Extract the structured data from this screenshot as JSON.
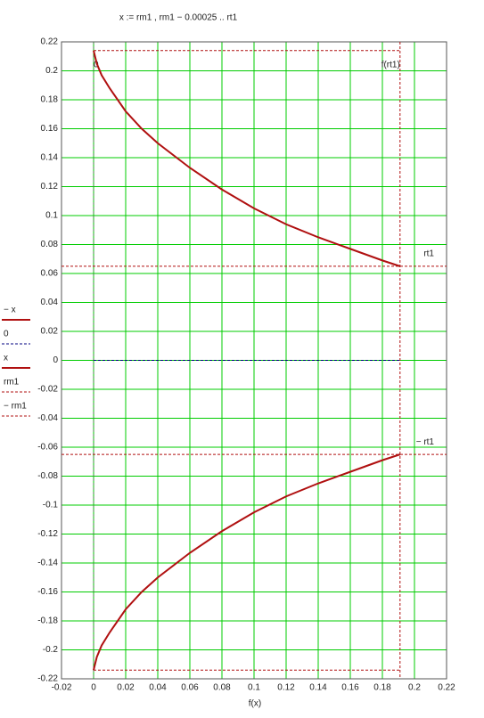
{
  "chart_data": {
    "type": "line",
    "title": "x := rm1 , rm1 − 0.00025 .. rt1",
    "x_label": "f(x)",
    "xlim": [
      -0.02,
      0.22
    ],
    "ylim": [
      -0.22,
      0.22
    ],
    "xticks": [
      -0.02,
      0,
      0.02,
      0.04,
      0.06,
      0.08,
      0.1,
      0.12,
      0.14,
      0.16,
      0.18,
      0.2,
      0.22
    ],
    "yticks": [
      0.22,
      0.2,
      0.18,
      0.16,
      0.14,
      0.12,
      0.1,
      0.08,
      0.06,
      0.04,
      0.02,
      0,
      -0.02,
      -0.04,
      -0.06,
      -0.08,
      -0.1,
      -0.12,
      -0.14,
      -0.16,
      -0.18,
      -0.2,
      -0.22
    ],
    "grid": true,
    "grid_color": "#00cc00",
    "series": [
      {
        "name": "− x",
        "color": "#b01010",
        "dash": false,
        "x": [
          0,
          0.002,
          0.005,
          0.01,
          0.02,
          0.03,
          0.04,
          0.06,
          0.08,
          0.1,
          0.12,
          0.14,
          0.16,
          0.18,
          0.191
        ],
        "values": [
          -0.214,
          -0.205,
          -0.197,
          -0.188,
          -0.172,
          -0.16,
          -0.15,
          -0.133,
          -0.118,
          -0.105,
          -0.094,
          -0.085,
          -0.077,
          -0.069,
          -0.065
        ]
      },
      {
        "name": "0",
        "color": "#000080",
        "dash": true,
        "x": [
          0,
          0.191
        ],
        "values": [
          0,
          0
        ]
      },
      {
        "name": "x",
        "color": "#b01010",
        "dash": false,
        "x": [
          0,
          0.002,
          0.005,
          0.01,
          0.02,
          0.03,
          0.04,
          0.06,
          0.08,
          0.1,
          0.12,
          0.14,
          0.16,
          0.18,
          0.191
        ],
        "values": [
          0.214,
          0.205,
          0.197,
          0.188,
          0.172,
          0.16,
          0.15,
          0.133,
          0.118,
          0.105,
          0.094,
          0.085,
          0.077,
          0.069,
          0.065
        ]
      },
      {
        "name": "rm1",
        "color": "#b01010",
        "dash": true,
        "x": [
          0,
          0.191
        ],
        "values": [
          0.214,
          0.214
        ]
      },
      {
        "name": "− rm1",
        "color": "#b01010",
        "dash": true,
        "x": [
          0,
          0.191
        ],
        "values": [
          -0.214,
          -0.214
        ]
      }
    ],
    "markers": [
      {
        "label": "0",
        "axis": "x",
        "value": 0,
        "color": "#408040"
      },
      {
        "label": "f(rt1)",
        "axis": "x",
        "value": 0.191,
        "color": "#b01010"
      },
      {
        "label": "rt1",
        "axis": "y",
        "value": 0.065,
        "color": "#b01010"
      },
      {
        "label": "− rt1",
        "axis": "y",
        "value": -0.065,
        "color": "#b01010"
      }
    ]
  }
}
